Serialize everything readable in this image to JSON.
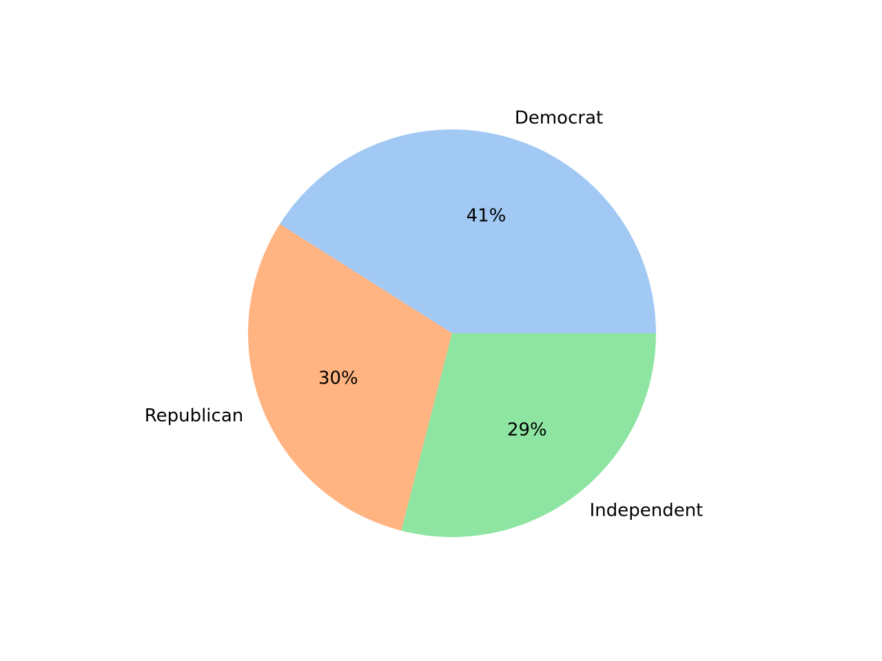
{
  "chart_data": {
    "type": "pie",
    "title": "",
    "categories": [
      "Democrat",
      "Republican",
      "Independent"
    ],
    "values": [
      41,
      30,
      29
    ],
    "value_labels": [
      "41%",
      "30%",
      "29%"
    ],
    "colors": [
      "#a1c9f4",
      "#ffb482",
      "#8de5a1"
    ],
    "start_angle_deg": 0,
    "direction": "counterclockwise",
    "legend": "none"
  }
}
